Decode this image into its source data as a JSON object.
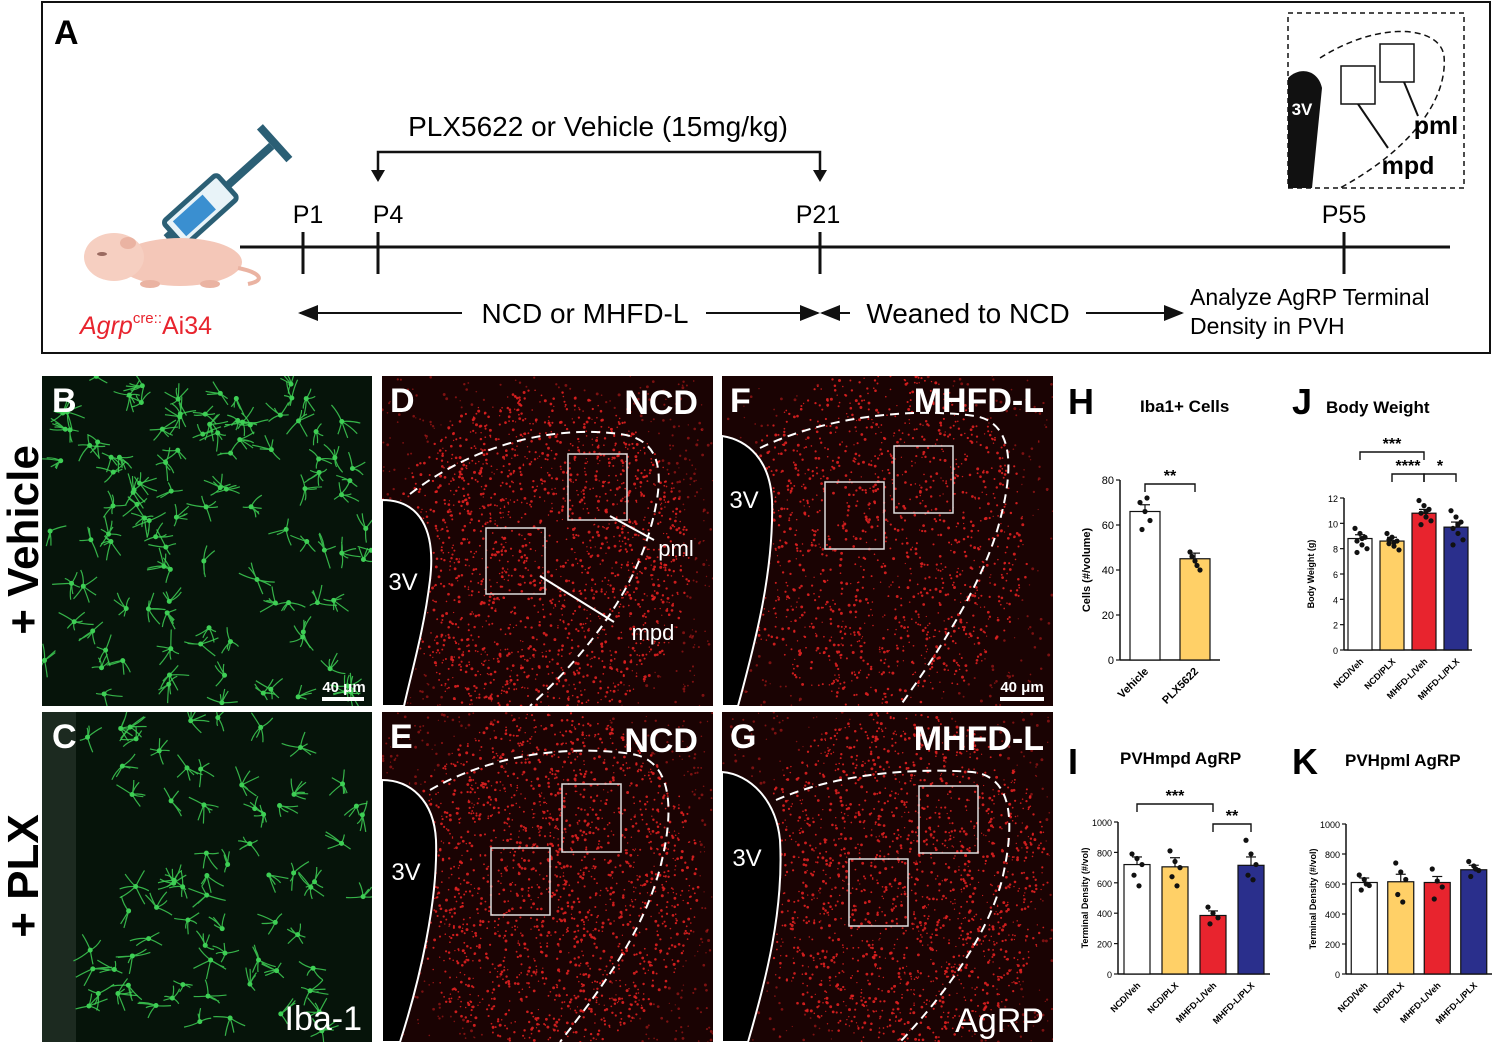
{
  "panel_a": {
    "letter": "A",
    "drug": "PLX5622 or Vehicle (15mg/kg)",
    "ticks": [
      "P1",
      "P4",
      "P21",
      "P55"
    ],
    "mouse_label_italic": "Agrp",
    "mouse_label_sup": "cre::",
    "mouse_label_rest": "Ai34",
    "diet": "NCD or MHFD-L",
    "wean": "Weaned to NCD",
    "analyze_1": "Analyze AgRP Terminal",
    "analyze_2": "Density in PVH",
    "inset_3v": "3V",
    "inset_pml": "pml",
    "inset_mpd": "mpd"
  },
  "row_labels": {
    "vehicle": "+ Vehicle",
    "plx": "+ PLX"
  },
  "micro": {
    "B": {
      "letter": "B",
      "scale": "40 μm"
    },
    "C": {
      "letter": "C",
      "label": "Iba-1"
    },
    "D": {
      "letter": "D",
      "label": "NCD",
      "v3": "3V",
      "pml": "pml",
      "mpd": "mpd"
    },
    "E": {
      "letter": "E",
      "label": "NCD",
      "v3": "3V"
    },
    "F": {
      "letter": "F",
      "label": "MHFD-L",
      "v3": "3V",
      "scale": "40 μm"
    },
    "G": {
      "letter": "G",
      "label": "MHFD-L",
      "v3": "3V",
      "marker": "AgRP"
    }
  },
  "colors": {
    "vehicle": "#ffffff",
    "plx": "#ffd067",
    "mhfd_veh": "#e8242e",
    "mhfd_plx": "#2a2f8c",
    "iba1": "#3ecf55",
    "agrp": "#e02020",
    "mouse_label": "#e8242e"
  },
  "chart_data": [
    {
      "panel": "H",
      "type": "bar",
      "title": "Iba1+ Cells",
      "categories": [
        "Vehicle",
        "PLX5622"
      ],
      "values": [
        66,
        45
      ],
      "sem": [
        3,
        2.5
      ],
      "points": [
        [
          70,
          66,
          62,
          58,
          72
        ],
        [
          48,
          44,
          40,
          46,
          42
        ]
      ],
      "ylabel": "Cells (#/volume)",
      "ylim": [
        0,
        80
      ],
      "yticks": [
        0,
        20,
        40,
        60,
        80
      ],
      "sig": [
        {
          "from": 0,
          "to": 1,
          "label": "**"
        }
      ]
    },
    {
      "panel": "J",
      "type": "bar",
      "title": "Body Weight",
      "categories": [
        "NCD/Veh",
        "NCD/PLX",
        "MHFD-L/Veh",
        "MHFD-L/PLX"
      ],
      "values": [
        8.8,
        8.6,
        10.8,
        9.7
      ],
      "sem": [
        0.3,
        0.3,
        0.3,
        0.4
      ],
      "points": [
        [
          9.6,
          9.2,
          8.9,
          8.6,
          8.3,
          8.0,
          7.7,
          8.8
        ],
        [
          9.2,
          8.9,
          8.6,
          8.4,
          8.2,
          7.9,
          8.7,
          8.5
        ],
        [
          11.8,
          11.4,
          11.1,
          10.8,
          10.5,
          10.2,
          9.9,
          10.9
        ],
        [
          11.0,
          10.5,
          10.1,
          9.6,
          9.2,
          8.7,
          8.3,
          9.9
        ]
      ],
      "ylabel": "Body Weight (g)",
      "ylim": [
        0,
        12
      ],
      "yticks": [
        0,
        2,
        4,
        6,
        8,
        10,
        12
      ],
      "sig": [
        {
          "from": 0,
          "to": 2,
          "label": "***"
        },
        {
          "from": 1,
          "to": 2,
          "label": "****"
        },
        {
          "from": 2,
          "to": 3,
          "label": "*"
        }
      ]
    },
    {
      "panel": "I",
      "type": "bar",
      "title": "PVHmpd AgRP",
      "categories": [
        "NCD/Veh",
        "NCD/PLX",
        "MHFD-L/Veh",
        "MHFD-L/PLX"
      ],
      "values": [
        720,
        705,
        385,
        715
      ],
      "sem": [
        50,
        60,
        30,
        55
      ],
      "points": [
        [
          790,
          760,
          720,
          650,
          580
        ],
        [
          810,
          740,
          700,
          640,
          580
        ],
        [
          440,
          400,
          370,
          330
        ],
        [
          880,
          790,
          720,
          650,
          620
        ]
      ],
      "ylabel": "Terminal Density (#/vol)",
      "ylim": [
        0,
        1000
      ],
      "yticks": [
        0,
        200,
        400,
        600,
        800,
        1000
      ],
      "sig": [
        {
          "from": 0,
          "to": 2,
          "label": "***"
        },
        {
          "from": 2,
          "to": 3,
          "label": "**"
        }
      ]
    },
    {
      "panel": "K",
      "type": "bar",
      "title": "PVHpml AgRP",
      "categories": [
        "NCD/Veh",
        "NCD/PLX",
        "MHFD-L/Veh",
        "MHFD-L/PLX"
      ],
      "values": [
        610,
        615,
        610,
        695
      ],
      "sem": [
        30,
        50,
        40,
        30
      ],
      "points": [
        [
          660,
          630,
          590,
          560,
          600
        ],
        [
          740,
          680,
          630,
          530,
          480
        ],
        [
          700,
          620,
          580,
          500
        ],
        [
          750,
          720,
          690,
          650,
          700
        ]
      ],
      "ylabel": "Terminal Density (#/vol)",
      "ylim": [
        0,
        1000
      ],
      "yticks": [
        0,
        200,
        400,
        600,
        800,
        1000
      ],
      "sig": []
    }
  ]
}
